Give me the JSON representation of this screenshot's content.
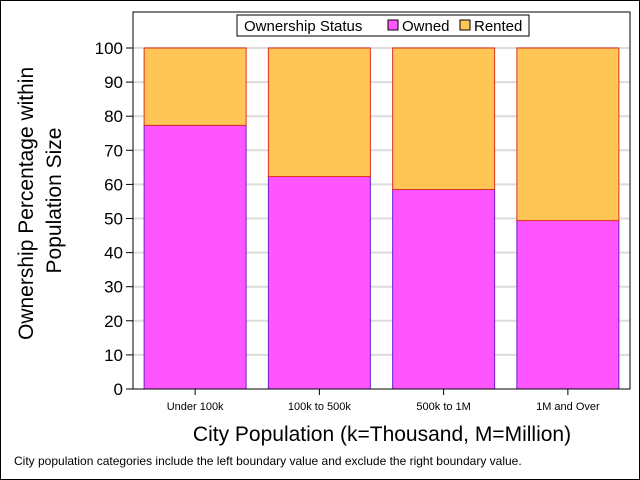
{
  "chart_data": {
    "type": "bar",
    "stacked": true,
    "categories": [
      "Under 100k",
      "100k to 500k",
      "500k to 1M",
      "1M and Over"
    ],
    "series": [
      {
        "name": "Owned",
        "values": [
          77.3,
          62.3,
          58.5,
          49.4
        ],
        "color": "#ff55ff"
      },
      {
        "name": "Rented",
        "values": [
          22.7,
          37.7,
          41.5,
          50.6
        ],
        "color": "#ffc555"
      }
    ],
    "legend_title": "Ownership Status",
    "legend_position": "top-center",
    "xlabel": "City Population (k=Thousand, M=Million)",
    "ylabel_lines": [
      "Ownership Percentage within",
      "Population Size"
    ],
    "ylim": [
      0,
      100
    ],
    "yticks": [
      0,
      10,
      20,
      30,
      40,
      50,
      60,
      70,
      80,
      90,
      100
    ],
    "grid": "horizontal",
    "colors": {
      "owned_outline": "#6a1fd0",
      "rented_outline": "#e03020",
      "grid": "#dcdcdc"
    }
  },
  "footnote": "City population categories include the left boundary value and exclude the right boundary value."
}
